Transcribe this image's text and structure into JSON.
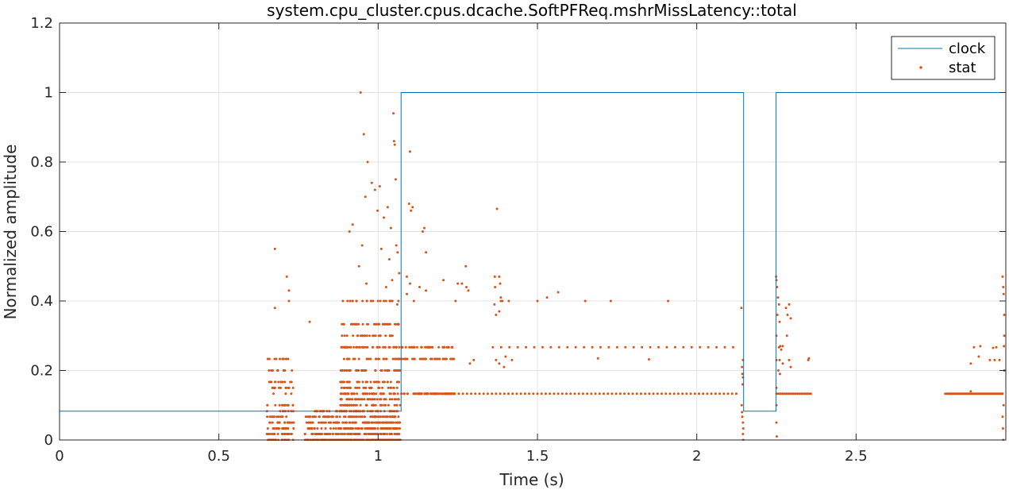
{
  "chart_data": {
    "type": "line",
    "title": "system.cpu_cluster.cpus.dcache.SoftPFReq.mshrMissLatency::total",
    "xlabel": "Time (s)",
    "ylabel": "Normalized amplitude",
    "xlim": [
      0,
      2.97
    ],
    "ylim": [
      0,
      1.2
    ],
    "x_ticks": [
      0,
      0.5,
      1,
      1.5,
      2,
      2.5
    ],
    "x_tick_labels": [
      "0",
      "0.5",
      "1",
      "1.5",
      "2",
      "2.5"
    ],
    "y_ticks": [
      0,
      0.2,
      0.4,
      0.6,
      0.8,
      1,
      1.2
    ],
    "y_tick_labels": [
      "0",
      "0.2",
      "0.4",
      "0.6",
      "0.8",
      "1",
      "1.2"
    ],
    "grid": true,
    "legend_position": "top-right",
    "colors": {
      "clock": "#0072BD",
      "stat": "#D95319"
    },
    "series": [
      {
        "name": "clock",
        "style": "line",
        "x": [
          0,
          1.072,
          1.072,
          2.147,
          2.147,
          2.249,
          2.249,
          2.97
        ],
        "y": [
          0.083,
          0.083,
          1,
          1,
          0.083,
          0.083,
          1,
          1
        ]
      },
      {
        "name": "stat",
        "style": "markers",
        "clusters": [
          {
            "x": [
              0.65,
              0.735
            ],
            "levels": [
              0,
              0.017,
              0.033,
              0.05,
              0.067,
              0.083,
              0.1,
              0.133,
              0.15,
              0.167,
              0.2,
              0.233
            ],
            "count": 170
          },
          {
            "x": [
              0.77,
              0.88
            ],
            "levels": [
              0,
              0.017,
              0.033,
              0.05,
              0.067,
              0.083
            ],
            "count": 190
          },
          {
            "x": [
              0.88,
              1.07
            ],
            "levels": [
              0,
              0.017,
              0.033,
              0.05,
              0.067,
              0.083,
              0.1,
              0.117,
              0.133,
              0.15,
              0.167,
              0.2,
              0.233,
              0.267,
              0.3,
              0.333,
              0.4
            ],
            "count": 820
          },
          {
            "x": [
              1.07,
              1.24
            ],
            "levels": [
              0.133,
              0.233,
              0.267
            ],
            "count": 150
          },
          {
            "x": [
              1.24,
              2.13
            ],
            "levels": [
              0.133
            ],
            "step": 0.013
          },
          {
            "x": [
              1.36,
              2.13
            ],
            "levels": [
              0.267
            ],
            "step": 0.026
          },
          {
            "x": [
              2.25,
              2.36
            ],
            "levels": [
              0.133
            ],
            "step": 0.006
          },
          {
            "x": [
              2.78,
              2.96
            ],
            "levels": [
              0.133
            ],
            "step": 0.004
          }
        ],
        "points": [
          [
            0.676,
            0.55
          ],
          [
            0.713,
            0.47
          ],
          [
            0.72,
            0.4
          ],
          [
            0.72,
            0.43
          ],
          [
            0.676,
            0.38
          ],
          [
            0.785,
            0.34
          ],
          [
            0.91,
            0.6
          ],
          [
            0.92,
            0.62
          ],
          [
            0.945,
            1.0
          ],
          [
            0.955,
            0.88
          ],
          [
            0.96,
            0.7
          ],
          [
            0.967,
            0.8
          ],
          [
            0.98,
            0.74
          ],
          [
            0.99,
            0.72
          ],
          [
            1.005,
            0.73
          ],
          [
            1.03,
            0.67
          ],
          [
            1.04,
            0.61
          ],
          [
            1.055,
            0.75
          ],
          [
            1.057,
            0.56
          ],
          [
            1.048,
            0.94
          ],
          [
            1.05,
            0.86
          ],
          [
            1.052,
            0.85
          ],
          [
            1.061,
            0.54
          ],
          [
            1.044,
            0.46
          ],
          [
            1.035,
            0.52
          ],
          [
            1.018,
            0.64
          ],
          [
            1.066,
            0.48
          ],
          [
            1.06,
            0.39
          ],
          [
            0.94,
            0.5
          ],
          [
            0.95,
            0.56
          ],
          [
            0.963,
            0.45
          ],
          [
            0.998,
            0.66
          ],
          [
            1.01,
            0.55
          ],
          [
            1.025,
            0.44
          ],
          [
            1.1,
            0.83
          ],
          [
            1.097,
            0.68
          ],
          [
            1.103,
            0.66
          ],
          [
            1.108,
            0.67
          ],
          [
            1.09,
            0.42
          ],
          [
            1.112,
            0.4
          ],
          [
            1.145,
            0.61
          ],
          [
            1.14,
            0.6
          ],
          [
            1.15,
            0.54
          ],
          [
            1.09,
            0.47
          ],
          [
            1.1,
            0.45
          ],
          [
            1.13,
            0.44
          ],
          [
            1.15,
            0.43
          ],
          [
            1.205,
            0.46
          ],
          [
            1.243,
            0.4
          ],
          [
            1.25,
            0.45
          ],
          [
            1.263,
            0.45
          ],
          [
            1.277,
            0.44
          ],
          [
            1.275,
            0.5
          ],
          [
            1.283,
            0.43
          ],
          [
            1.3,
            0.23
          ],
          [
            1.288,
            0.22
          ],
          [
            1.373,
            0.665
          ],
          [
            1.366,
            0.47
          ],
          [
            1.367,
            0.44
          ],
          [
            1.38,
            0.47
          ],
          [
            1.383,
            0.45
          ],
          [
            1.385,
            0.41
          ],
          [
            1.38,
            0.37
          ],
          [
            1.385,
            0.4
          ],
          [
            1.365,
            0.39
          ],
          [
            1.37,
            0.36
          ],
          [
            1.39,
            0.4
          ],
          [
            1.41,
            0.4
          ],
          [
            1.37,
            0.23
          ],
          [
            1.38,
            0.22
          ],
          [
            1.4,
            0.24
          ],
          [
            1.42,
            0.23
          ],
          [
            1.395,
            0.21
          ],
          [
            1.5,
            0.4
          ],
          [
            1.53,
            0.41
          ],
          [
            1.565,
            0.425
          ],
          [
            1.65,
            0.4
          ],
          [
            1.73,
            0.4
          ],
          [
            1.91,
            0.4
          ],
          [
            1.69,
            0.235
          ],
          [
            1.85,
            0.232
          ],
          [
            2.14,
            0.38
          ],
          [
            2.145,
            0.23
          ],
          [
            2.142,
            0.21
          ],
          [
            2.143,
            0.19
          ],
          [
            2.145,
            0.18
          ],
          [
            2.144,
            0.16
          ],
          [
            2.141,
            0.1
          ],
          [
            2.142,
            0.08
          ],
          [
            2.143,
            0.067
          ],
          [
            2.145,
            0.05
          ],
          [
            2.146,
            0.033
          ],
          [
            2.145,
            0.017
          ],
          [
            2.146,
            0.0
          ],
          [
            2.249,
            0.47
          ],
          [
            2.25,
            0.46
          ],
          [
            2.252,
            0.44
          ],
          [
            2.255,
            0.41
          ],
          [
            2.258,
            0.39
          ],
          [
            2.253,
            0.36
          ],
          [
            2.26,
            0.34
          ],
          [
            2.25,
            0.3
          ],
          [
            2.262,
            0.27
          ],
          [
            2.27,
            0.27
          ],
          [
            2.258,
            0.267
          ],
          [
            2.265,
            0.26
          ],
          [
            2.25,
            0.23
          ],
          [
            2.26,
            0.23
          ],
          [
            2.27,
            0.22
          ],
          [
            2.256,
            0.2
          ],
          [
            2.261,
            0.19
          ],
          [
            2.25,
            0.15
          ],
          [
            2.25,
            0.1
          ],
          [
            2.25,
            0.05
          ],
          [
            2.251,
            0.01
          ],
          [
            2.28,
            0.38
          ],
          [
            2.29,
            0.39
          ],
          [
            2.285,
            0.36
          ],
          [
            2.295,
            0.35
          ],
          [
            2.283,
            0.3
          ],
          [
            2.29,
            0.23
          ],
          [
            2.295,
            0.21
          ],
          [
            2.35,
            0.23
          ],
          [
            2.352,
            0.235
          ],
          [
            2.96,
            0.47
          ],
          [
            2.962,
            0.44
          ],
          [
            2.963,
            0.42
          ],
          [
            2.965,
            0.36
          ],
          [
            2.965,
            0.3
          ],
          [
            2.964,
            0.27
          ],
          [
            2.965,
            0.2
          ],
          [
            2.963,
            0.1
          ],
          [
            2.96,
            0.067
          ],
          [
            2.961,
            0.033
          ],
          [
            2.962,
            0.0
          ],
          [
            2.87,
            0.267
          ],
          [
            2.89,
            0.27
          ],
          [
            2.93,
            0.265
          ],
          [
            2.94,
            0.267
          ],
          [
            2.885,
            0.24
          ],
          [
            2.92,
            0.23
          ],
          [
            2.935,
            0.23
          ],
          [
            2.86,
            0.22
          ],
          [
            2.95,
            0.23
          ],
          [
            2.86,
            0.14
          ]
        ]
      }
    ]
  }
}
